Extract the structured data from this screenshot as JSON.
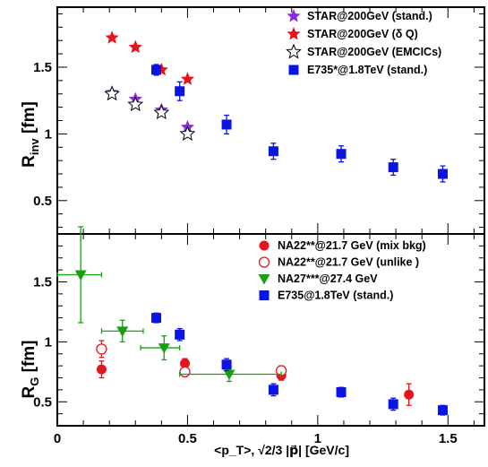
{
  "chart_data": [
    {
      "type": "scatter",
      "panel": "top",
      "ylabel": "R",
      "ylabel_sub": "inv",
      "ylabel_unit": " [fm]",
      "xlim": [
        0,
        1.64
      ],
      "ylim": [
        0.25,
        1.95
      ],
      "yticks": [
        {
          "v": 0.5,
          "label": "0.5"
        },
        {
          "v": 1.0,
          "label": "1"
        },
        {
          "v": 1.5,
          "label": "1.5"
        }
      ],
      "legend_position": "top-right",
      "series": [
        {
          "name": "STAR@200GeV (stand.)",
          "marker": "star-solid",
          "color": "#8a2be2",
          "points": [
            {
              "x": 0.21,
              "y": 1.31
            },
            {
              "x": 0.3,
              "y": 1.26
            },
            {
              "x": 0.4,
              "y": 1.18
            },
            {
              "x": 0.5,
              "y": 1.05
            }
          ]
        },
        {
          "name": "STAR@200GeV (δ Q)",
          "marker": "star-solid",
          "color": "#e8141b",
          "points": [
            {
              "x": 0.21,
              "y": 1.72
            },
            {
              "x": 0.3,
              "y": 1.65
            },
            {
              "x": 0.4,
              "y": 1.48
            },
            {
              "x": 0.5,
              "y": 1.41
            }
          ]
        },
        {
          "name": "STAR@200GeV (EMCICs)",
          "marker": "star-open",
          "color": "#000000",
          "points": [
            {
              "x": 0.21,
              "y": 1.3
            },
            {
              "x": 0.3,
              "y": 1.22
            },
            {
              "x": 0.4,
              "y": 1.16
            },
            {
              "x": 0.5,
              "y": 1.0
            }
          ]
        },
        {
          "name": "E735*@1.8TeV (stand.)",
          "marker": "square",
          "color": "#0a14e6",
          "points": [
            {
              "x": 0.38,
              "y": 1.48,
              "err": 0.04
            },
            {
              "x": 0.47,
              "y": 1.32,
              "err": 0.07
            },
            {
              "x": 0.65,
              "y": 1.07,
              "err": 0.07
            },
            {
              "x": 0.83,
              "y": 0.87,
              "err": 0.06
            },
            {
              "x": 1.09,
              "y": 0.85,
              "err": 0.06
            },
            {
              "x": 1.29,
              "y": 0.75,
              "err": 0.06
            },
            {
              "x": 1.48,
              "y": 0.7,
              "err": 0.06
            }
          ]
        }
      ]
    },
    {
      "type": "scatter",
      "panel": "bottom",
      "ylabel": "R",
      "ylabel_sub": "G",
      "ylabel_unit": " [fm]",
      "xlabel": "<p_T>, √2/3 |p⃗| [GeV/c]",
      "xlim": [
        0,
        1.64
      ],
      "ylim": [
        0.3,
        1.9
      ],
      "xticks": [
        {
          "v": 0,
          "label": "0"
        },
        {
          "v": 0.5,
          "label": "0.5"
        },
        {
          "v": 1.0,
          "label": "1"
        },
        {
          "v": 1.5,
          "label": "1.5"
        }
      ],
      "yticks": [
        {
          "v": 0.5,
          "label": "0.5"
        },
        {
          "v": 1.0,
          "label": "1"
        },
        {
          "v": 1.5,
          "label": "1.5"
        }
      ],
      "legend_position": "top-right",
      "series": [
        {
          "name": "NA22**@21.7 GeV (mix bkg)",
          "marker": "circle-solid",
          "color": "#e8141b",
          "points": [
            {
              "x": 0.17,
              "y": 0.77,
              "err": 0.07
            },
            {
              "x": 0.49,
              "y": 0.82,
              "err": 0.04
            },
            {
              "x": 0.86,
              "y": 0.72,
              "err": 0.04
            },
            {
              "x": 1.35,
              "y": 0.56,
              "err": 0.09
            }
          ]
        },
        {
          "name": "NA22**@21.7 GeV (unlike )",
          "marker": "circle-open",
          "color": "#e8141b",
          "points": [
            {
              "x": 0.17,
              "y": 0.94,
              "err": 0.07
            },
            {
              "x": 0.49,
              "y": 0.75,
              "err": 0.04
            },
            {
              "x": 0.86,
              "y": 0.76,
              "err": 0.04
            }
          ]
        },
        {
          "name": "NA27***@27.4 GeV",
          "marker": "triangle-down",
          "color": "#16a012",
          "points": [
            {
              "x": 0.09,
              "y": 1.56,
              "err": 0.4,
              "xerr": [
                0.09,
                0.08
              ]
            },
            {
              "x": 0.25,
              "y": 1.09,
              "err": 0.09,
              "xerr": [
                0.08,
                0.08
              ]
            },
            {
              "x": 0.41,
              "y": 0.95,
              "err": 0.1,
              "xerr": [
                0.09,
                0.06
              ]
            },
            {
              "x": 0.66,
              "y": 0.73,
              "err": 0.06,
              "xerr": [
                0.19,
                0.2
              ]
            }
          ]
        },
        {
          "name": "E735@1.8TeV (stand.)",
          "marker": "square",
          "color": "#0a14e6",
          "points": [
            {
              "x": 0.38,
              "y": 1.2,
              "err": 0.04
            },
            {
              "x": 0.47,
              "y": 1.06,
              "err": 0.05
            },
            {
              "x": 0.65,
              "y": 0.81,
              "err": 0.05
            },
            {
              "x": 0.83,
              "y": 0.6,
              "err": 0.05
            },
            {
              "x": 1.09,
              "y": 0.58,
              "err": 0.04
            },
            {
              "x": 1.29,
              "y": 0.48,
              "err": 0.05
            },
            {
              "x": 1.48,
              "y": 0.43,
              "err": 0.04
            }
          ]
        }
      ]
    }
  ]
}
